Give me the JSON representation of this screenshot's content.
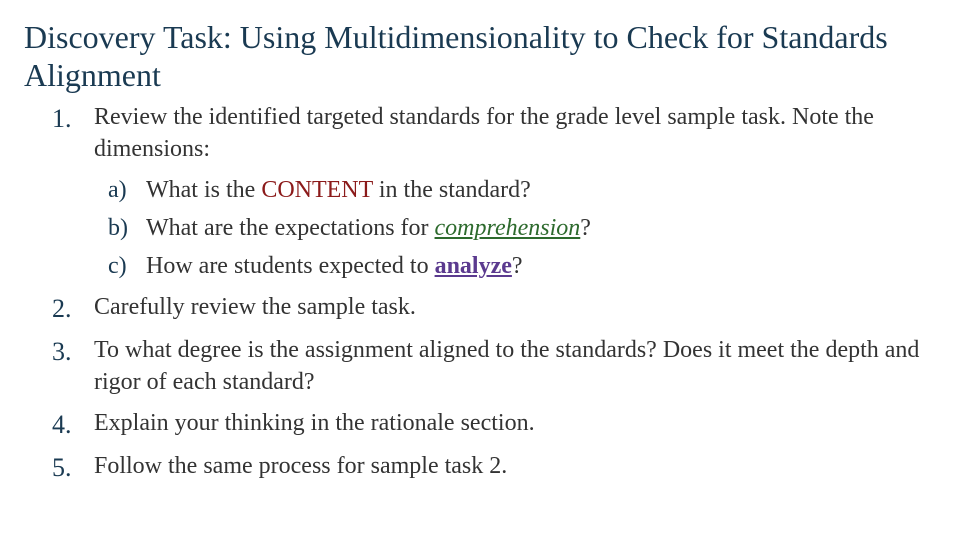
{
  "title": "Discovery Task: Using Multidimensionality to Check for Standards Alignment",
  "items": [
    {
      "marker": "1.",
      "text": "Review the identified targeted standards for the grade level sample task. Note the dimensions:",
      "sub": [
        {
          "marker": "a)",
          "pre": "What is the ",
          "hl": "CONTENT",
          "hlClass": "word-content",
          "post": " in the standard?"
        },
        {
          "marker": "b)",
          "pre": "What are the expectations for ",
          "hl": "comprehension",
          "hlClass": "word-comprehension",
          "post": "?"
        },
        {
          "marker": "c)",
          "pre": "How are students expected to ",
          "hl": "analyze",
          "hlClass": "word-analyze",
          "post": "?"
        }
      ]
    },
    {
      "marker": "2.",
      "text": "Carefully review the sample task."
    },
    {
      "marker": "3.",
      "text": "To what degree is the assignment aligned to the standards? Does it meet the depth and rigor of each standard?"
    },
    {
      "marker": "4.",
      "text": "Explain your thinking in the rationale section."
    },
    {
      "marker": "5.",
      "text": "Follow the same process for sample task 2."
    }
  ],
  "colors": {
    "title": "#1a3a52",
    "marker": "#1a3a52",
    "body": "#333333",
    "content": "#8b1a1a",
    "comprehension": "#2d6a2d",
    "analyze": "#5b3a8f",
    "background": "#ffffff"
  },
  "typography": {
    "title_fontsize": 32,
    "body_fontsize": 24,
    "font_family": "Georgia, serif"
  }
}
